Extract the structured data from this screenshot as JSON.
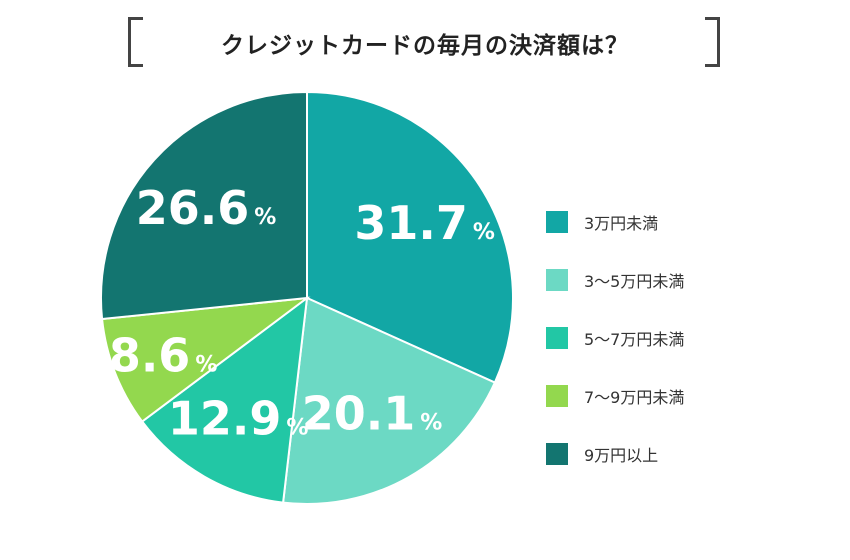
{
  "chart_data": {
    "type": "pie",
    "title": "クレジットカードの毎月の決済額は？",
    "start": "12 o'clock",
    "direction": "clockwise",
    "unit": "%",
    "slices": [
      {
        "label": "3万円未満",
        "value": 31.7,
        "value_text": "31.7",
        "color": "#12a7a5"
      },
      {
        "label": "3〜5万円未満",
        "value": 20.1,
        "value_text": "20.1",
        "color": "#6cd9c4"
      },
      {
        "label": "5〜7万円未満",
        "value": 12.9,
        "value_text": "12.9",
        "color": "#22c7a5"
      },
      {
        "label": "7〜9万円未満",
        "value": 8.6,
        "value_text": "8.6",
        "color": "#93d84e"
      },
      {
        "label": "9万円以上",
        "value": 26.6,
        "value_text": "26.6",
        "color": "#137570"
      }
    ]
  }
}
